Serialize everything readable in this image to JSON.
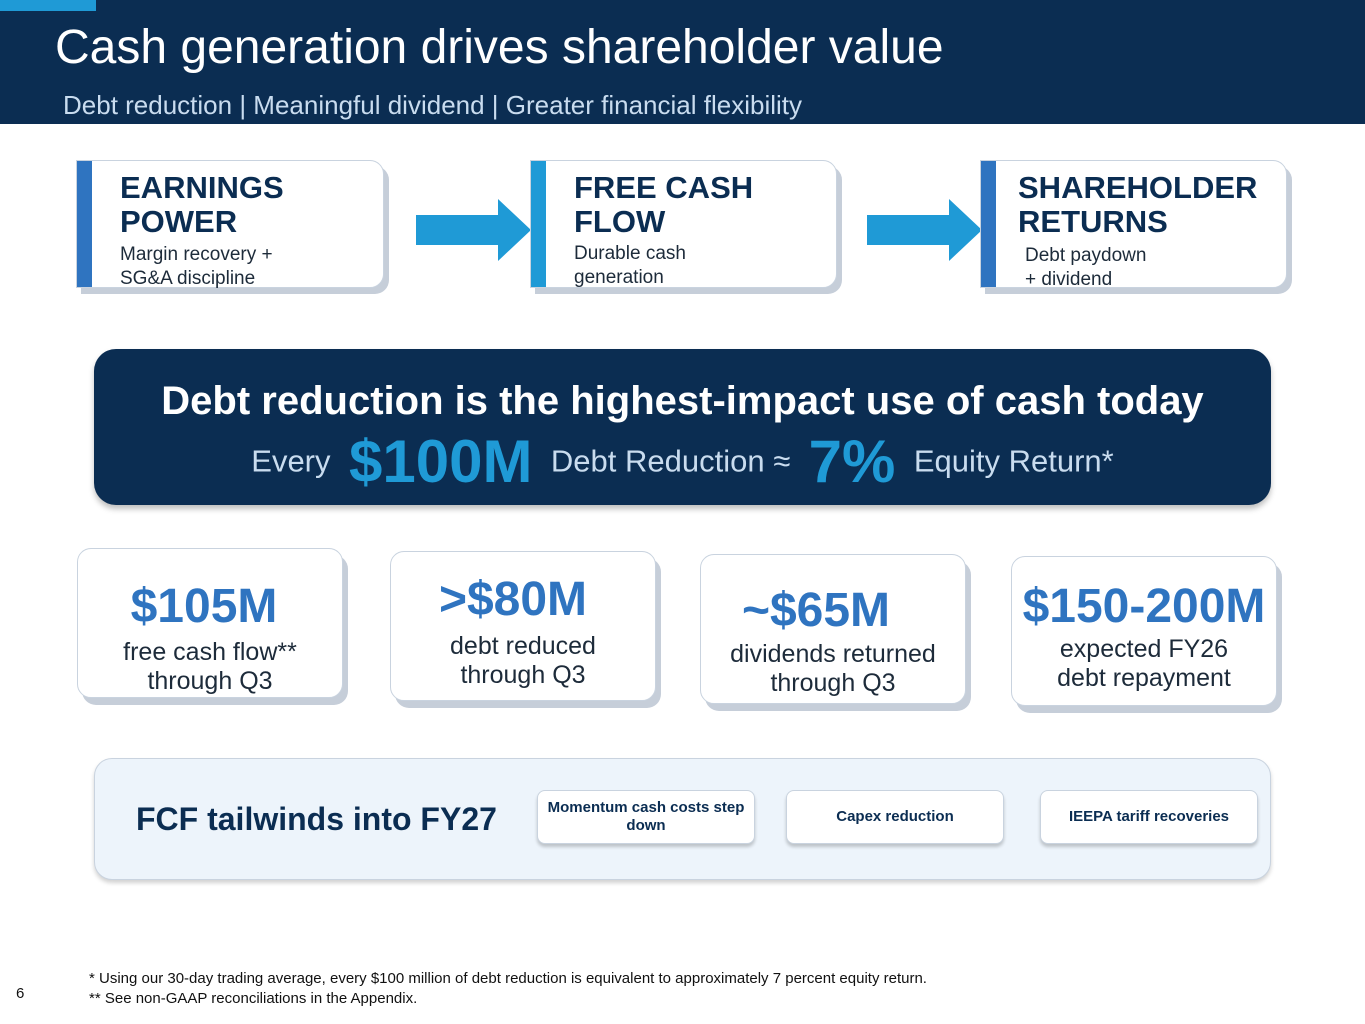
{
  "header": {
    "title": "Cash generation drives shareholder value",
    "subtitle": "Debt reduction  |  Meaningful dividend  |  Greater financial flexibility"
  },
  "flow": [
    {
      "title_line1": "EARNINGS",
      "title_line2": "POWER",
      "desc_line1": "Margin recovery +",
      "desc_line2": "SG&A discipline"
    },
    {
      "title_line1": "FREE CASH",
      "title_line2": "FLOW",
      "desc_line1": "Durable cash",
      "desc_line2": "generation"
    },
    {
      "title_line1": "SHAREHOLDER",
      "title_line2": "RETURNS",
      "desc_line1": "Debt paydown",
      "desc_line2": "+ dividend"
    }
  ],
  "banner": {
    "headline": "Debt reduction is the highest-impact use of cash today",
    "every": "Every",
    "amount": "$100M",
    "middle": "Debt Reduction  ≈",
    "percent": "7%",
    "tail": "Equity Return*"
  },
  "stats": [
    {
      "value": "$105M",
      "label_line1": "free cash flow**",
      "label_line2": "through Q3"
    },
    {
      "value": ">$80M",
      "label_line1": "debt reduced",
      "label_line2": "through Q3"
    },
    {
      "value": "~$65M",
      "label_line1": "dividends returned",
      "label_line2": "through Q3"
    },
    {
      "value": "$150-200M",
      "label_line1": "expected FY26",
      "label_line2": "debt repayment"
    }
  ],
  "tailwinds": {
    "title": "FCF tailwinds into FY27",
    "items": [
      "Momentum cash costs step down",
      "Capex reduction",
      "IEEPA tariff recoveries"
    ]
  },
  "footnotes": {
    "line1": "*  Using our 30-day trading average, every $100 million of debt reduction is equivalent to approximately 7 percent equity return.",
    "line2": "** See non-GAAP reconciliations in the Appendix."
  },
  "page_number": "6",
  "colors": {
    "navy": "#0b2d52",
    "accent_blue": "#1f9ad6",
    "stat_blue": "#2f74c0",
    "flow_bar_1": "#2f74c0",
    "flow_bar_2": "#1f9ad6"
  }
}
